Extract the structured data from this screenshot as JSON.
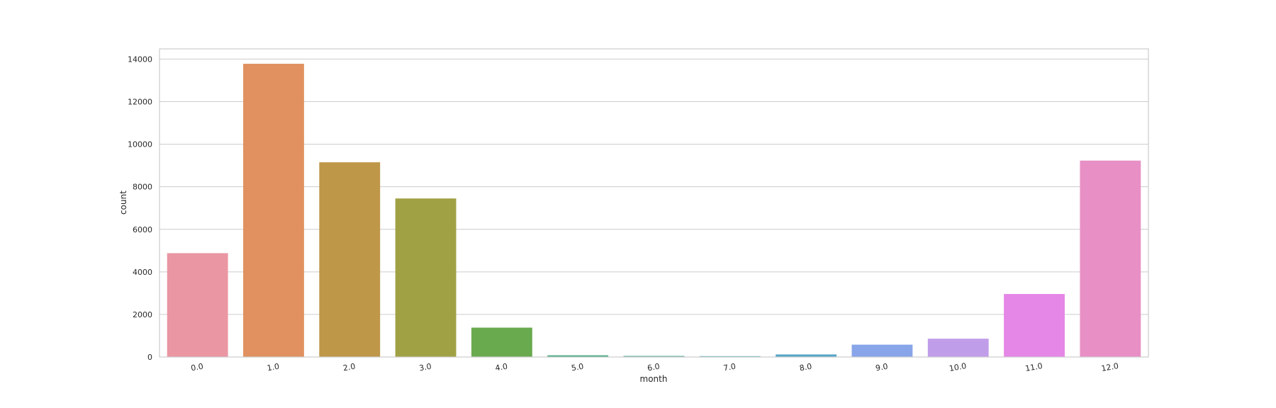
{
  "chart_data": {
    "type": "bar",
    "xlabel": "month",
    "ylabel": "count",
    "categories": [
      "0.0",
      "1.0",
      "2.0",
      "3.0",
      "4.0",
      "5.0",
      "6.0",
      "7.0",
      "8.0",
      "9.0",
      "10.0",
      "11.0",
      "12.0"
    ],
    "values": [
      4880,
      13780,
      9150,
      7450,
      1380,
      80,
      50,
      40,
      120,
      580,
      860,
      2960,
      9230
    ],
    "colors": [
      "#ea96a3",
      "#e1915f",
      "#be9748",
      "#a0a144",
      "#6aaa4f",
      "#4dac86",
      "#4fab9c",
      "#53a9af",
      "#56a6c6",
      "#88a5e9",
      "#c09de9",
      "#e587e6",
      "#e890c5"
    ],
    "yticks": [
      "0",
      "2000",
      "4000",
      "6000",
      "8000",
      "10000",
      "12000",
      "14000"
    ],
    "ylim": [
      0,
      14480
    ],
    "grid": true
  }
}
